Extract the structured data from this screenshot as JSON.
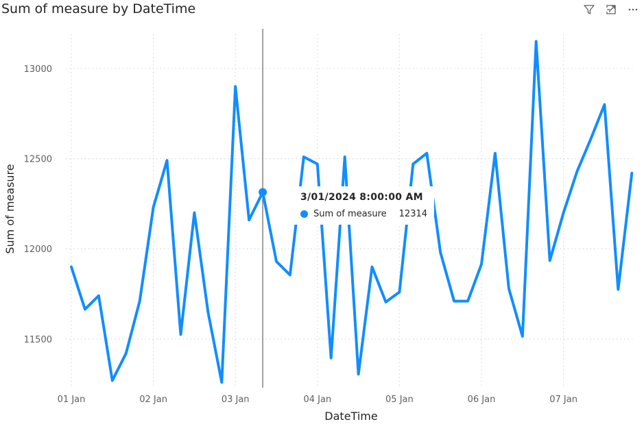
{
  "header": {
    "title": "Sum of measure by DateTime",
    "icons": [
      "filter-icon",
      "focus-mode-icon",
      "more-options-icon"
    ]
  },
  "colors": {
    "series": "#118DFF",
    "crosshair": "#6e6e6e",
    "grid": "#d9d9d9"
  },
  "tooltip": {
    "title": "3/01/2024 8:00:00 AM",
    "series_label": "Sum of measure",
    "value": "12314"
  },
  "chart_data": {
    "type": "line",
    "title": "Sum of measure by DateTime",
    "xlabel": "DateTime",
    "ylabel": "Sum of measure",
    "x_unit": "days",
    "x_ticks": [
      "01 Jan",
      "02 Jan",
      "03 Jan",
      "04 Jan",
      "05 Jan",
      "06 Jan",
      "07 Jan"
    ],
    "y_ticks": [
      11500,
      12000,
      12500,
      13000
    ],
    "ylim": [
      11230,
      13220
    ],
    "xlim": [
      "2024-01-01 00:00",
      "2024-01-07 20:00"
    ],
    "grid": true,
    "highlight": {
      "x": "2024-01-03 08:00",
      "y": 12314
    },
    "series": [
      {
        "name": "Sum of measure",
        "x": [
          "2024-01-01 00:00",
          "2024-01-01 04:00",
          "2024-01-01 08:00",
          "2024-01-01 12:00",
          "2024-01-01 16:00",
          "2024-01-01 20:00",
          "2024-01-02 00:00",
          "2024-01-02 04:00",
          "2024-01-02 08:00",
          "2024-01-02 12:00",
          "2024-01-02 16:00",
          "2024-01-02 20:00",
          "2024-01-03 00:00",
          "2024-01-03 04:00",
          "2024-01-03 08:00",
          "2024-01-03 12:00",
          "2024-01-03 16:00",
          "2024-01-03 20:00",
          "2024-01-04 00:00",
          "2024-01-04 04:00",
          "2024-01-04 08:00",
          "2024-01-04 12:00",
          "2024-01-04 16:00",
          "2024-01-04 20:00",
          "2024-01-05 00:00",
          "2024-01-05 04:00",
          "2024-01-05 08:00",
          "2024-01-05 12:00",
          "2024-01-05 16:00",
          "2024-01-05 20:00",
          "2024-01-06 00:00",
          "2024-01-06 04:00",
          "2024-01-06 08:00",
          "2024-01-06 12:00",
          "2024-01-06 16:00",
          "2024-01-06 20:00",
          "2024-01-07 00:00",
          "2024-01-07 04:00",
          "2024-01-07 08:00",
          "2024-01-07 12:00",
          "2024-01-07 16:00",
          "2024-01-07 20:00"
        ],
        "y": [
          11900,
          11665,
          11740,
          11270,
          11420,
          11710,
          12230,
          12490,
          11525,
          12200,
          11650,
          11260,
          12900,
          12160,
          12314,
          11930,
          11855,
          12510,
          12470,
          11395,
          12510,
          11305,
          11900,
          11705,
          11760,
          12470,
          12530,
          11980,
          11710,
          11710,
          11915,
          12530,
          11780,
          11515,
          13150,
          11935,
          12200,
          12430,
          12610,
          12800,
          11775,
          12420
        ]
      }
    ]
  }
}
